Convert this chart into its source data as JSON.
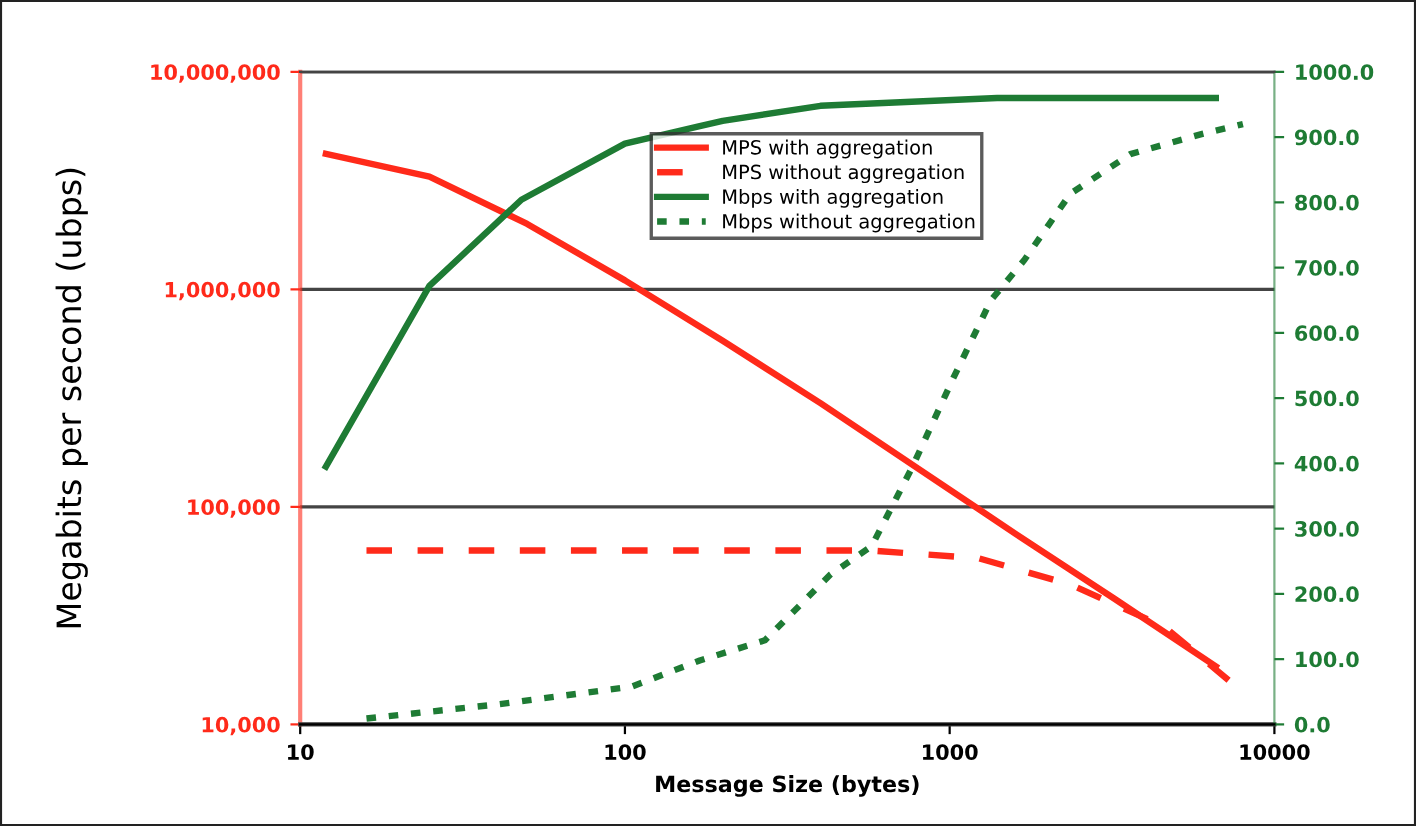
{
  "chart_data": {
    "type": "line",
    "xlabel": "Message Size (bytes)",
    "ylabel": "Megabits per second (ubps)",
    "log": "xy",
    "grid": "y",
    "legend": "top",
    "marker": "none",
    "xlim": [
      10,
      10000
    ],
    "xticks": [
      10,
      100,
      1000,
      10000
    ],
    "ylim": [
      10000,
      10000000
    ],
    "yticks": [
      {
        "value": 10000,
        "label": "10,000"
      },
      {
        "value": 100000,
        "label": "100,000"
      },
      {
        "value": 1000000,
        "label": "1,000,000"
      },
      {
        "value": 10000000,
        "label": "10,000,000"
      }
    ],
    "y2lim": [
      0,
      1000
    ],
    "y2ticks": [
      {
        "value": 0,
        "label": "0.0"
      },
      {
        "value": 100,
        "label": "100.0"
      },
      {
        "value": 200,
        "label": "200.0"
      },
      {
        "value": 300,
        "label": "300.0"
      },
      {
        "value": 400,
        "label": "400.0"
      },
      {
        "value": 500,
        "label": "500.0"
      },
      {
        "value": 600,
        "label": "600.0"
      },
      {
        "value": 700,
        "label": "700.0"
      },
      {
        "value": 800,
        "label": "800.0"
      },
      {
        "value": 900,
        "label": "900.0"
      },
      {
        "value": 1000,
        "label": "1000.0"
      }
    ],
    "series": [
      {
        "name": "MPS with aggregation",
        "color": "#ff2a1a",
        "line_style": "solid",
        "x": [
          12,
          25,
          50,
          100,
          200,
          400,
          800,
          1600,
          3200,
          6600
        ],
        "values": [
          4200000,
          3300000,
          2000000,
          1100000,
          580000,
          300000,
          150000,
          75000,
          38000,
          18500
        ]
      },
      {
        "name": "MPS without aggregation",
        "color": "#ff2a1a",
        "line_style": "dashed",
        "x": [
          16,
          575,
          1230,
          2350,
          4600,
          7600
        ],
        "values": [
          63000,
          63000,
          58000,
          44000,
          28000,
          15000
        ]
      },
      {
        "name": "Mbps with aggregation",
        "color": "#1e7b34",
        "line_style": "solid",
        "axis": "y2",
        "x": [
          12,
          25,
          48,
          100,
          170,
          200,
          400,
          1400,
          6600
        ],
        "values": [
          395,
          672,
          804,
          890,
          917,
          925,
          948,
          960,
          960
        ]
      },
      {
        "name": "Mbps without aggregation",
        "color": "#1e7b34",
        "line_style": "dotted",
        "axis": "y2",
        "x": [
          16,
          41,
          105,
          170,
          270,
          430,
          575,
          770,
          1020,
          1340,
          1700,
          2350,
          3600,
          6000,
          8000
        ],
        "values": [
          9,
          31,
          58,
          98,
          129,
          230,
          273,
          396,
          528,
          650,
          712,
          813,
          874,
          905,
          920
        ]
      }
    ]
  }
}
